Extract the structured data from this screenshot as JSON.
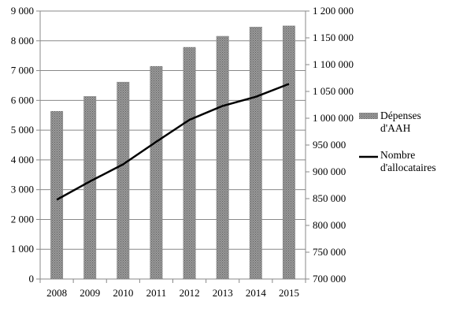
{
  "chart_data": {
    "type": "bar",
    "categories": [
      "2008",
      "2009",
      "2010",
      "2011",
      "2012",
      "2013",
      "2014",
      "2015"
    ],
    "series": [
      {
        "name": "Dépenses d'AAH",
        "type": "bar",
        "axis": "left",
        "color": "#808080",
        "values": [
          5640,
          6140,
          6620,
          7150,
          7790,
          8160,
          8470,
          8510
        ]
      },
      {
        "name": "Nombre d'allocataires",
        "type": "line",
        "axis": "right",
        "color": "#000000",
        "values": [
          848000,
          882000,
          914000,
          956000,
          997000,
          1023000,
          1040000,
          1064000
        ]
      }
    ],
    "y_left": {
      "range": [
        0,
        9000
      ],
      "ticks": [
        0,
        1000,
        2000,
        3000,
        4000,
        5000,
        6000,
        7000,
        8000,
        9000
      ],
      "tick_labels": [
        "0",
        "1 000",
        "2 000",
        "3 000",
        "4 000",
        "5 000",
        "6 000",
        "7 000",
        "8 000",
        "9 000"
      ]
    },
    "y_right": {
      "range": [
        700000,
        1200000
      ],
      "ticks": [
        700000,
        750000,
        800000,
        850000,
        900000,
        950000,
        1000000,
        1050000,
        1100000,
        1150000,
        1200000
      ],
      "tick_labels": [
        "700 000",
        "750 000",
        "800 000",
        "850 000",
        "900 000",
        "950 000",
        "1 000 000",
        "1 050 000",
        "1 100 000",
        "1 150 000",
        "1 200 000"
      ]
    },
    "legend": {
      "placement": "right",
      "entries": [
        {
          "lines": [
            "Dépenses",
            "d'AAH"
          ],
          "marker": "bar"
        },
        {
          "lines": [
            "Nombre",
            "d'allocataires"
          ],
          "marker": "line"
        }
      ]
    },
    "grid": true
  }
}
